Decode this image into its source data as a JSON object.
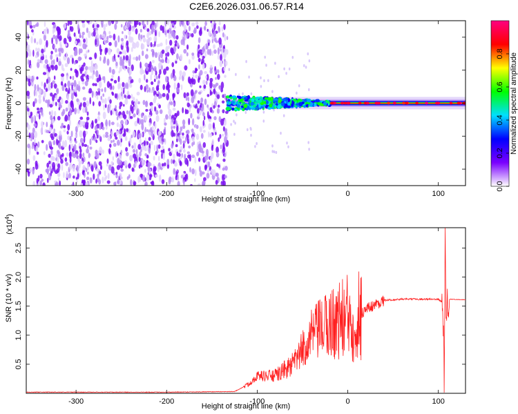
{
  "title": "C2E6.2026.031.06.57.R14",
  "chart_data": [
    {
      "type": "heatmap",
      "xlabel": "Height of straight line (km)",
      "ylabel": "Frequency (Hz)",
      "xlim": [
        -355,
        130
      ],
      "ylim": [
        -50,
        50
      ],
      "xticks": [
        -300,
        -200,
        -100,
        0,
        100
      ],
      "yticks": [
        -40,
        -20,
        0,
        20,
        40
      ],
      "colorbar": {
        "label": "Normalized spectral amplitude",
        "range": [
          0,
          1
        ],
        "ticks": [
          "0.0",
          "0.2",
          "0.4",
          "0.6",
          "0.8"
        ],
        "colors": [
          "#ffffff",
          "#7a00ff",
          "#0000ff",
          "#00e0ff",
          "#00ff00",
          "#ffff00",
          "#ff0000",
          "#ff0080"
        ]
      },
      "regions": [
        {
          "x": [
            -355,
            -133
          ],
          "f": [
            -50,
            50
          ],
          "amplitude": 0.12,
          "description_key": "noise"
        },
        {
          "x": [
            -133,
            130
          ],
          "f_center": 0,
          "amplitude_range": [
            0.3,
            0.9
          ]
        }
      ]
    },
    {
      "type": "line",
      "xlabel": "Height of straight line (km)",
      "ylabel": "SNR (10 * v/v)",
      "yscale_label": "(x10",
      "yscale_exp": "4",
      "xlim": [
        -355,
        130
      ],
      "ylim": [
        0,
        2.85
      ],
      "xticks": [
        -300,
        -200,
        -100,
        0,
        100
      ],
      "yticks": [
        "0.5",
        "1.0",
        "1.5",
        "2.0",
        "2.5"
      ],
      "color": "#ff2020",
      "series_points": [
        [
          -355,
          0.02
        ],
        [
          -200,
          0.02
        ],
        [
          -125,
          0.03
        ],
        [
          -110,
          0.15
        ],
        [
          -100,
          0.3
        ],
        [
          -80,
          0.3
        ],
        [
          -60,
          0.5
        ],
        [
          -40,
          1.0
        ],
        [
          -20,
          1.2
        ],
        [
          0,
          1.3
        ],
        [
          10,
          1.3
        ],
        [
          20,
          1.45
        ],
        [
          40,
          1.6
        ],
        [
          60,
          1.62
        ],
        [
          100,
          1.62
        ],
        [
          105,
          1.55
        ],
        [
          106.5,
          0.2
        ],
        [
          107.5,
          2.85
        ],
        [
          108.5,
          1.5
        ],
        [
          112,
          1.62
        ],
        [
          130,
          1.61
        ]
      ]
    }
  ]
}
